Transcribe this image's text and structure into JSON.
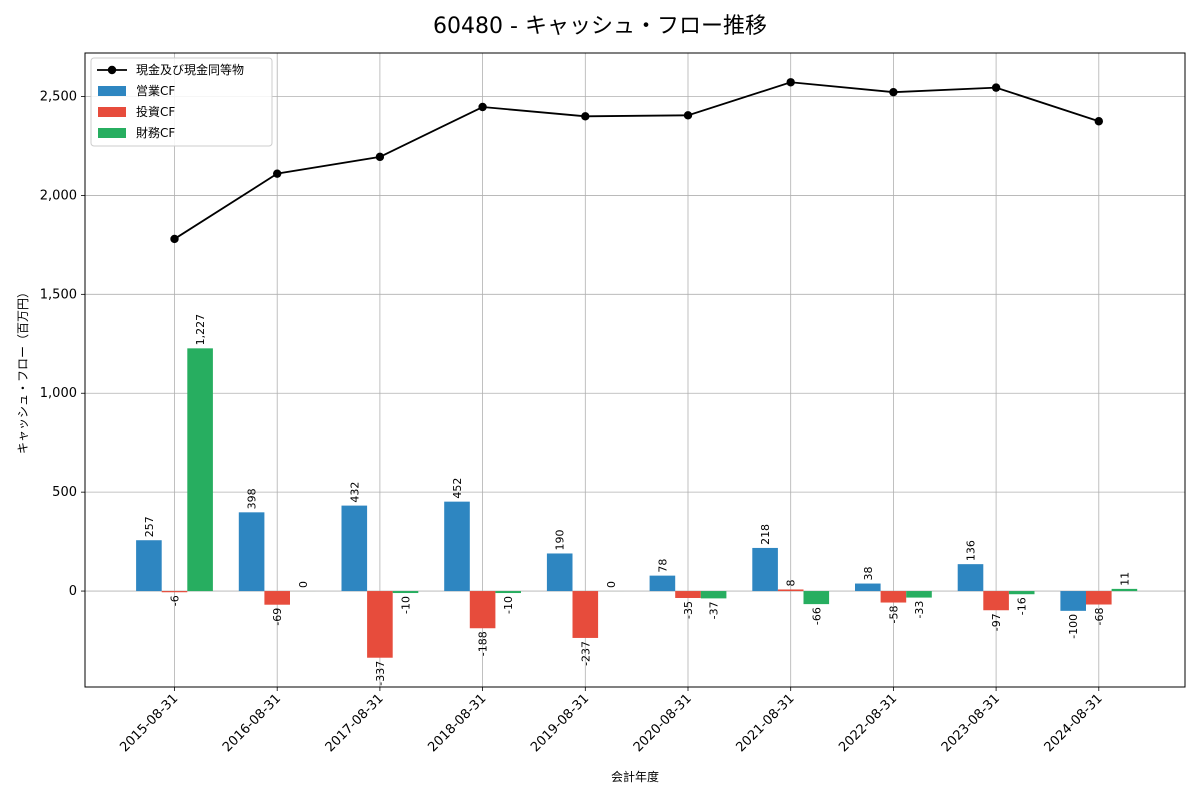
{
  "chart_data": {
    "type": "bar",
    "title": "60480 - キャッシュ・フロー推移",
    "xlabel": "会計年度",
    "ylabel": "キャッシュ・フロー（百万円）",
    "categories": [
      "2015-08-31",
      "2016-08-31",
      "2017-08-31",
      "2018-08-31",
      "2019-08-31",
      "2020-08-31",
      "2021-08-31",
      "2022-08-31",
      "2023-08-31",
      "2024-08-31"
    ],
    "ylim": [
      -485,
      2720
    ],
    "yticks": [
      0,
      500,
      1000,
      1500,
      2000,
      2500
    ],
    "ytick_labels": [
      "0",
      "500",
      "1,000",
      "1,500",
      "2,000",
      "2,500"
    ],
    "grid": true,
    "legend_position": "top-left",
    "series": [
      {
        "name": "現金及び現金同等物",
        "kind": "line",
        "color": "#000000",
        "values": [
          1780,
          2110,
          2195,
          2447,
          2400,
          2405,
          2572,
          2522,
          2545,
          2375
        ]
      },
      {
        "name": "営業CF",
        "kind": "bar",
        "color": "#2E86C1",
        "values": [
          257,
          398,
          432,
          452,
          190,
          78,
          218,
          38,
          136,
          -100
        ],
        "labels": [
          "257",
          "398",
          "432",
          "452",
          "190",
          "78",
          "218",
          "38",
          "136",
          "-100"
        ]
      },
      {
        "name": "投資CF",
        "kind": "bar",
        "color": "#E74C3C",
        "values": [
          -6,
          -69,
          -337,
          -188,
          -237,
          -35,
          8,
          -58,
          -97,
          -68
        ],
        "labels": [
          "-6",
          "-69",
          "-337",
          "-188",
          "-237",
          "-35",
          "8",
          "-58",
          "-97",
          "-68"
        ]
      },
      {
        "name": "財務CF",
        "kind": "bar",
        "color": "#27AE60",
        "values": [
          1227,
          0,
          -10,
          -10,
          0,
          -37,
          -66,
          -33,
          -16,
          11
        ],
        "labels": [
          "1,227",
          "0",
          "-10",
          "-10",
          "0",
          "-37",
          "-66",
          "-33",
          "-16",
          "11"
        ]
      }
    ]
  }
}
